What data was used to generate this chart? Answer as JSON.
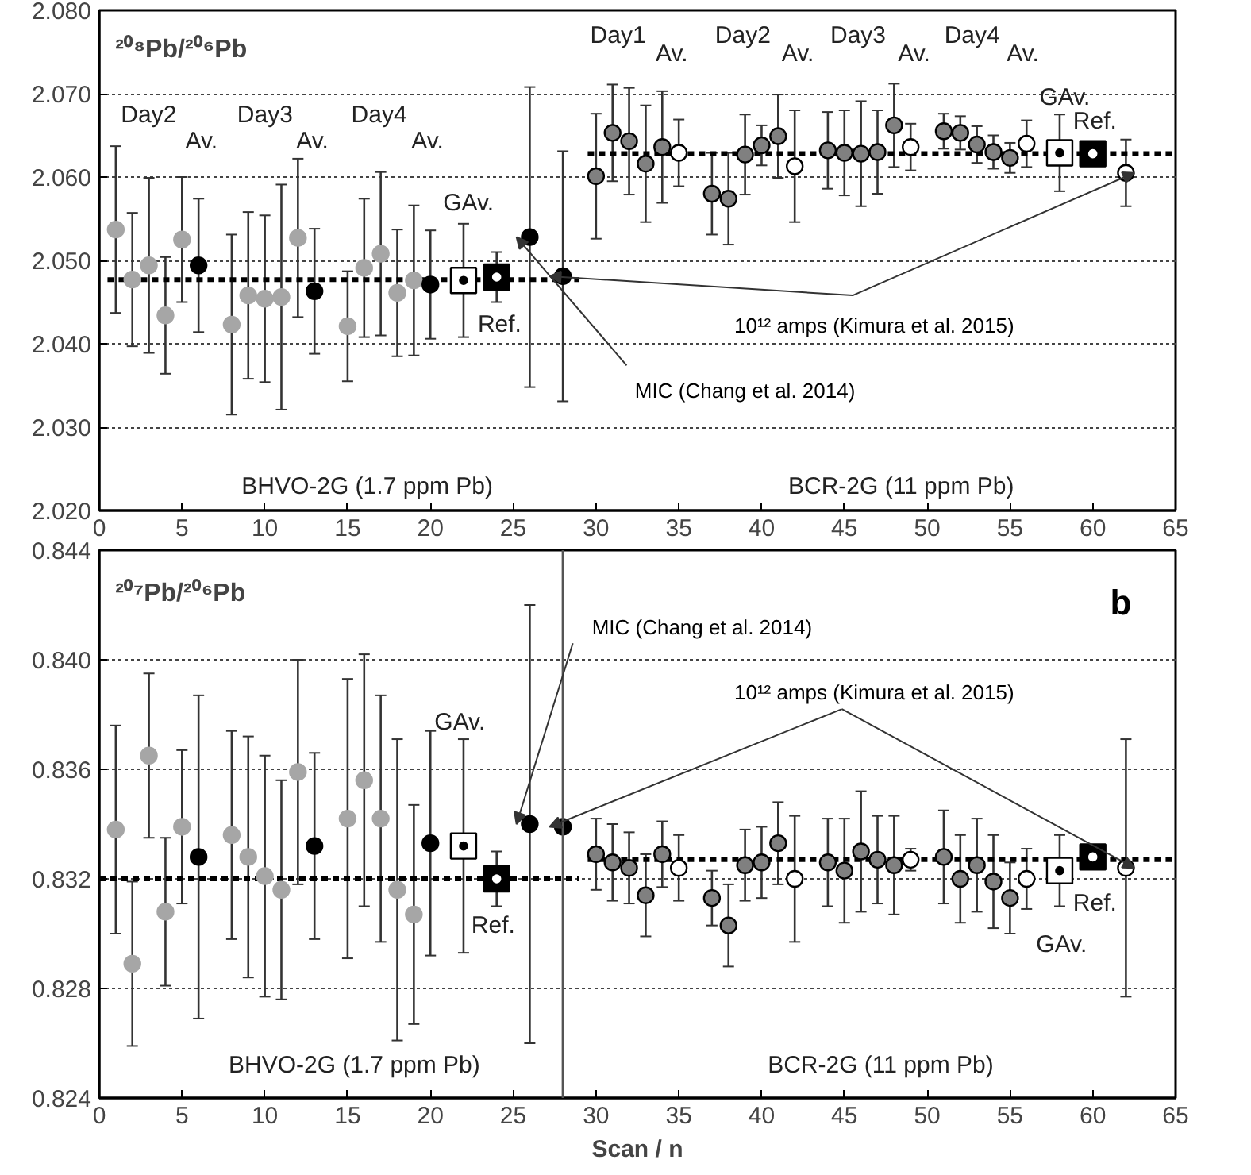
{
  "chart_data": [
    {
      "type": "scatter",
      "title": "²⁰⁸Pb/²⁰⁶Pb",
      "xlim": [
        0,
        65
      ],
      "xticks": [
        0,
        5,
        10,
        15,
        20,
        25,
        30,
        35,
        40,
        45,
        50,
        55,
        60,
        65
      ],
      "ylim": [
        2.02,
        2.08
      ],
      "yticks": [
        {
          "value": 2.02,
          "label": "2.020"
        },
        {
          "value": 2.03,
          "label": "2.030"
        },
        {
          "value": 2.04,
          "label": "2.040"
        },
        {
          "value": 2.05,
          "label": "2.050"
        },
        {
          "value": 2.06,
          "label": "2.060"
        },
        {
          "value": 2.07,
          "label": "2.070"
        },
        {
          "value": 2.08,
          "label": "2.080"
        }
      ],
      "grid": "y",
      "series": [
        {
          "type": "line",
          "color": "#000000",
          "line_style": "dashed",
          "marker": "none",
          "x": [
            0.5,
            29
          ],
          "values": [
            2.0477,
            2.0477
          ]
        },
        {
          "type": "line",
          "color": "#000000",
          "line_style": "dashed",
          "marker": "none",
          "x": [
            29.5,
            65
          ],
          "values": [
            2.0628,
            2.0628
          ]
        },
        {
          "color": "#a6a6a6",
          "marker": "circle",
          "x": [
            1,
            2,
            3,
            4,
            5,
            8,
            9,
            10,
            11,
            12,
            15,
            16,
            17,
            18,
            19
          ],
          "values": [
            2.0537,
            2.0477,
            2.0494,
            2.0434,
            2.0525,
            2.0423,
            2.0458,
            2.0454,
            2.0456,
            2.0527,
            2.0421,
            2.0491,
            2.0508,
            2.0461,
            2.0476
          ],
          "errors": [
            0.01,
            0.008,
            0.0105,
            0.007,
            0.0075,
            0.0108,
            0.01,
            0.01,
            0.0135,
            0.0095,
            0.0066,
            0.0083,
            0.0098,
            0.0076,
            0.009
          ]
        },
        {
          "color": "#000000",
          "marker": "circle",
          "x": [
            6,
            13,
            20
          ],
          "values": [
            2.0494,
            2.0463,
            2.0471
          ],
          "errors": [
            0.008,
            0.0075,
            0.0065
          ]
        },
        {
          "color": "#ffffff",
          "marker": "square",
          "x": [
            22,
            58
          ],
          "values": [
            2.0476,
            2.0629
          ],
          "errors": [
            0.0068,
            0.0046
          ]
        },
        {
          "color": "#000000",
          "marker": "square",
          "x": [
            24,
            60
          ],
          "values": [
            2.048,
            2.0628
          ],
          "errors": [
            0.003,
            0.0008
          ]
        },
        {
          "name": "MIC (Chang et al. 2014)",
          "color": "#000000",
          "marker": "circle",
          "x": [
            26
          ],
          "values": [
            2.0528
          ],
          "errors": [
            0.018
          ]
        },
        {
          "name": "10¹² amps (Kimura et al. 2015)",
          "colors": [
            "#000000",
            "#ffffff"
          ],
          "marker": "circle",
          "x": [
            28,
            62
          ],
          "values": [
            2.0481,
            2.0605
          ],
          "errors": [
            0.015,
            0.004
          ]
        },
        {
          "color": "#808080",
          "marker": "circle",
          "x": [
            30,
            31,
            32,
            33,
            34,
            37,
            38,
            39,
            40,
            41,
            44,
            45,
            46,
            47,
            48,
            51,
            52,
            53,
            54,
            55
          ],
          "values": [
            2.0601,
            2.0653,
            2.0643,
            2.0616,
            2.0636,
            2.058,
            2.0574,
            2.0627,
            2.0638,
            2.0649,
            2.0632,
            2.0629,
            2.0628,
            2.063,
            2.0662,
            2.0655,
            2.0653,
            2.0639,
            2.063,
            2.0623
          ],
          "errors": [
            0.0075,
            0.0058,
            0.0064,
            0.007,
            0.0067,
            0.0049,
            0.0055,
            0.0048,
            0.0024,
            0.005,
            0.0046,
            0.0051,
            0.0063,
            0.005,
            0.005,
            0.0021,
            0.002,
            0.0022,
            0.002,
            0.0018
          ]
        },
        {
          "color": "#ffffff",
          "marker": "circle",
          "x": [
            35,
            42,
            49,
            56
          ],
          "values": [
            2.0629,
            2.0613,
            2.0636,
            2.064
          ],
          "errors": [
            0.004,
            0.0067,
            0.0028,
            0.0028
          ]
        }
      ],
      "annotations": [
        "Day2",
        "Av.",
        "Day3",
        "Av.",
        "Day4",
        "Av.",
        "Day1",
        "Av.",
        "Day2",
        "Av.",
        "Day3",
        "Av.",
        "Day4",
        "Av.",
        "GAv.",
        "Ref.",
        "GAv.",
        "Ref.",
        "BHVO-2G (1.7 ppm Pb)",
        "BCR-2G (11 ppm Pb)"
      ]
    },
    {
      "type": "scatter",
      "title": "²⁰⁷Pb/²⁰⁶Pb",
      "xlabel": "Scan / n",
      "xlim": [
        0,
        65
      ],
      "xticks": [
        0,
        5,
        10,
        15,
        20,
        25,
        30,
        35,
        40,
        45,
        50,
        55,
        60,
        65
      ],
      "ylim": [
        0.824,
        0.844
      ],
      "yticks": [
        {
          "value": 0.824,
          "label": "0.824"
        },
        {
          "value": 0.828,
          "label": "0.828"
        },
        {
          "value": 0.832,
          "label": "0.832"
        },
        {
          "value": 0.836,
          "label": "0.836"
        },
        {
          "value": 0.84,
          "label": "0.840"
        },
        {
          "value": 0.844,
          "label": "0.844"
        }
      ],
      "grid": "y",
      "ref_lines": [
        {
          "axis": "x",
          "value": 28,
          "color": "#555555"
        }
      ],
      "series": [
        {
          "type": "line",
          "color": "#000000",
          "line_style": "dashed",
          "marker": "none",
          "x": [
            0,
            29
          ],
          "values": [
            0.832,
            0.832
          ]
        },
        {
          "type": "line",
          "color": "#000000",
          "line_style": "dashed",
          "marker": "none",
          "x": [
            29.5,
            65
          ],
          "values": [
            0.8327,
            0.8327
          ]
        },
        {
          "color": "#a6a6a6",
          "marker": "circle",
          "x": [
            1,
            2,
            3,
            4,
            5,
            8,
            9,
            10,
            11,
            12,
            15,
            16,
            17,
            18,
            19
          ],
          "values": [
            0.8338,
            0.8289,
            0.8365,
            0.8308,
            0.8339,
            0.8336,
            0.8328,
            0.8321,
            0.8316,
            0.8359,
            0.8342,
            0.8356,
            0.8342,
            0.8316,
            0.8307
          ],
          "errors": [
            0.0038,
            0.003,
            0.003,
            0.0027,
            0.0028,
            0.0038,
            0.0044,
            0.0044,
            0.004,
            0.0041,
            0.0051,
            0.0046,
            0.0045,
            0.0055,
            0.004
          ]
        },
        {
          "color": "#000000",
          "marker": "circle",
          "x": [
            6,
            13,
            20
          ],
          "values": [
            0.8328,
            0.8332,
            0.8333
          ],
          "errors": [
            0.0059,
            0.0034,
            0.0041
          ]
        },
        {
          "color": "#ffffff",
          "marker": "square",
          "x": [
            22,
            58
          ],
          "values": [
            0.8332,
            0.8323
          ],
          "errors": [
            0.0039,
            0.0013
          ]
        },
        {
          "color": "#000000",
          "marker": "square",
          "x": [
            24,
            60
          ],
          "values": [
            0.832,
            0.8328
          ],
          "errors": [
            0.001,
            0.0003
          ]
        },
        {
          "name": "MIC (Chang et al. 2014)",
          "color": "#000000",
          "marker": "circle",
          "x": [
            26
          ],
          "values": [
            0.834
          ],
          "errors": [
            0.008
          ]
        },
        {
          "name": "10¹² amps (Kimura et al. 2015)",
          "colors": [
            "#000000",
            "#ffffff"
          ],
          "marker": "circle",
          "x": [
            28,
            62
          ],
          "values": [
            0.8339,
            0.8324
          ],
          "errors": [
            null,
            0.0047
          ]
        },
        {
          "color": "#808080",
          "marker": "circle",
          "x": [
            30,
            31,
            32,
            33,
            34,
            37,
            38,
            39,
            40,
            41,
            44,
            45,
            46,
            47,
            48,
            51,
            52,
            53,
            54,
            55
          ],
          "values": [
            0.8329,
            0.8326,
            0.8324,
            0.8314,
            0.8329,
            0.8313,
            0.8303,
            0.8325,
            0.8326,
            0.8333,
            0.8326,
            0.8323,
            0.833,
            0.8327,
            0.8325,
            0.8328,
            0.832,
            0.8325,
            0.8319,
            0.8313
          ],
          "errors": [
            0.0013,
            0.0014,
            0.0013,
            0.0015,
            0.0012,
            0.001,
            0.0015,
            0.0013,
            0.0013,
            0.0015,
            0.0016,
            0.0019,
            0.0022,
            0.0016,
            0.0018,
            0.0017,
            0.0016,
            0.0017,
            0.0017,
            0.0013
          ]
        },
        {
          "color": "#ffffff",
          "marker": "circle",
          "x": [
            35,
            42,
            49,
            56
          ],
          "values": [
            0.8324,
            0.832,
            0.8327,
            0.832
          ],
          "errors": [
            0.0012,
            0.0023,
            0.0004,
            0.0011
          ]
        }
      ],
      "annotations": [
        "GAv.",
        "Ref.",
        "Ref.",
        "GAv.",
        "b",
        "BHVO-2G (1.7 ppm Pb)",
        "BCR-2G (11 ppm Pb)"
      ]
    }
  ]
}
